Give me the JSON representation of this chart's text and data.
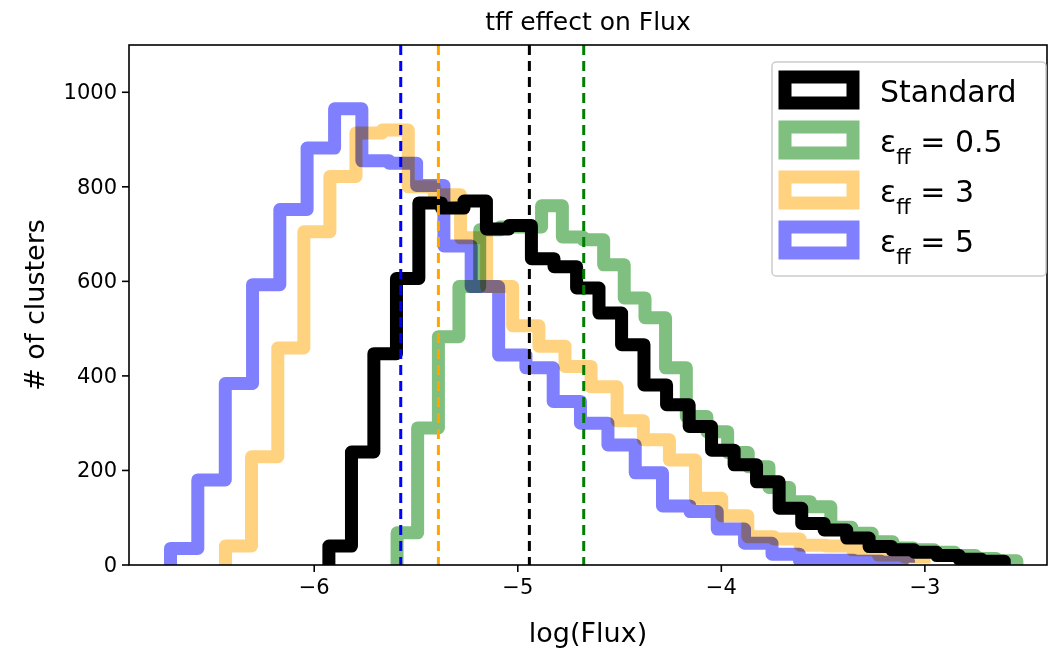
{
  "chart_data": {
    "type": "step",
    "title": "tff effect on Flux",
    "xlabel": "log(Flux)",
    "ylabel": "# of clusters",
    "xlim": [
      -6.91,
      -2.4
    ],
    "ylim": [
      0,
      1100
    ],
    "xticks": [
      {
        "value": -6,
        "label": "−6"
      },
      {
        "value": -5,
        "label": "−5"
      },
      {
        "value": -4,
        "label": "−4"
      },
      {
        "value": -3,
        "label": "−3"
      }
    ],
    "yticks": [
      0,
      200,
      400,
      600,
      800,
      1000
    ],
    "legend": "top right",
    "grid": false,
    "series": [
      {
        "name": "Standard",
        "color": "#000000",
        "x": [
          -5.928,
          -5.928,
          -5.817,
          -5.707,
          -5.596,
          -5.486,
          -5.375,
          -5.264,
          -5.154,
          -5.043,
          -4.933,
          -4.822,
          -4.711,
          -4.601,
          -4.49,
          -4.38,
          -4.269,
          -4.158,
          -4.048,
          -3.937,
          -3.827,
          -3.716,
          -3.605,
          -3.495,
          -3.384,
          -3.274,
          -3.163,
          -3.052,
          -2.942,
          -2.831,
          -2.721,
          -2.61
        ],
        "values": [
          0,
          40,
          239,
          447,
          606,
          766,
          755,
          770,
          711,
          718,
          648,
          631,
          586,
          533,
          466,
          381,
          339,
          293,
          243,
          212,
          176,
          120,
          88,
          74,
          57,
          39,
          32,
          27,
          20,
          12,
          8,
          0
        ]
      },
      {
        "name": "ε$_{ff}$ = 0.5",
        "color": "#7fbf7f",
        "x": [
          -5.593,
          -5.593,
          -5.492,
          -5.39,
          -5.289,
          -5.187,
          -5.086,
          -4.984,
          -4.883,
          -4.781,
          -4.68,
          -4.578,
          -4.477,
          -4.375,
          -4.274,
          -4.172,
          -4.071,
          -3.969,
          -3.868,
          -3.766,
          -3.665,
          -3.563,
          -3.462,
          -3.36,
          -3.259,
          -3.157,
          -3.056,
          -2.954,
          -2.853,
          -2.751,
          -2.65,
          -2.548
        ],
        "values": [
          0,
          68,
          290,
          483,
          589,
          709,
          715,
          715,
          760,
          694,
          688,
          635,
          565,
          523,
          417,
          314,
          282,
          238,
          208,
          164,
          134,
          123,
          80,
          67,
          49,
          36,
          32,
          27,
          20,
          14,
          9,
          0
        ]
      },
      {
        "name": "ε$_{ff}$ = 3",
        "color": "#ffd280",
        "x": [
          -6.436,
          -6.436,
          -6.308,
          -6.179,
          -6.051,
          -5.923,
          -5.795,
          -5.666,
          -5.538,
          -5.41,
          -5.281,
          -5.153,
          -5.025,
          -4.896,
          -4.768,
          -4.64,
          -4.512,
          -4.383,
          -4.255,
          -4.127,
          -3.998,
          -3.87,
          -3.742,
          -3.613,
          -3.485,
          -3.357,
          -3.229,
          -3.1,
          -2.972
        ],
        "values": [
          0,
          40,
          229,
          459,
          705,
          822,
          914,
          920,
          800,
          783,
          692,
          589,
          506,
          463,
          420,
          377,
          305,
          265,
          222,
          141,
          104,
          60,
          55,
          42,
          40,
          32,
          21,
          17,
          15
        ]
      },
      {
        "name": "ε$_{ff}$ = 5",
        "color": "#8080ff",
        "x": [
          -6.706,
          -6.706,
          -6.572,
          -6.437,
          -6.303,
          -6.169,
          -6.035,
          -5.9,
          -5.766,
          -5.632,
          -5.497,
          -5.363,
          -5.229,
          -5.094,
          -4.96,
          -4.826,
          -4.692,
          -4.557,
          -4.423,
          -4.289,
          -4.154,
          -4.02,
          -3.886,
          -3.751,
          -3.617,
          -3.483,
          -3.349,
          -3.214,
          -3.08
        ],
        "values": [
          0,
          35,
          180,
          384,
          593,
          752,
          882,
          965,
          855,
          850,
          803,
          675,
          589,
          444,
          417,
          346,
          300,
          254,
          195,
          125,
          113,
          76,
          46,
          23,
          10,
          10,
          8,
          6,
          5
        ]
      }
    ],
    "ref_lines": [
      {
        "axis": "x",
        "value": -5.575,
        "color": "#0000ff",
        "line_style": "dashed"
      },
      {
        "axis": "x",
        "value": -5.39,
        "color": "#ffa500",
        "line_style": "dashed"
      },
      {
        "axis": "x",
        "value": -4.943,
        "color": "#000000",
        "line_style": "dashed"
      },
      {
        "axis": "x",
        "value": -4.676,
        "color": "#008000",
        "line_style": "dashed"
      }
    ]
  }
}
